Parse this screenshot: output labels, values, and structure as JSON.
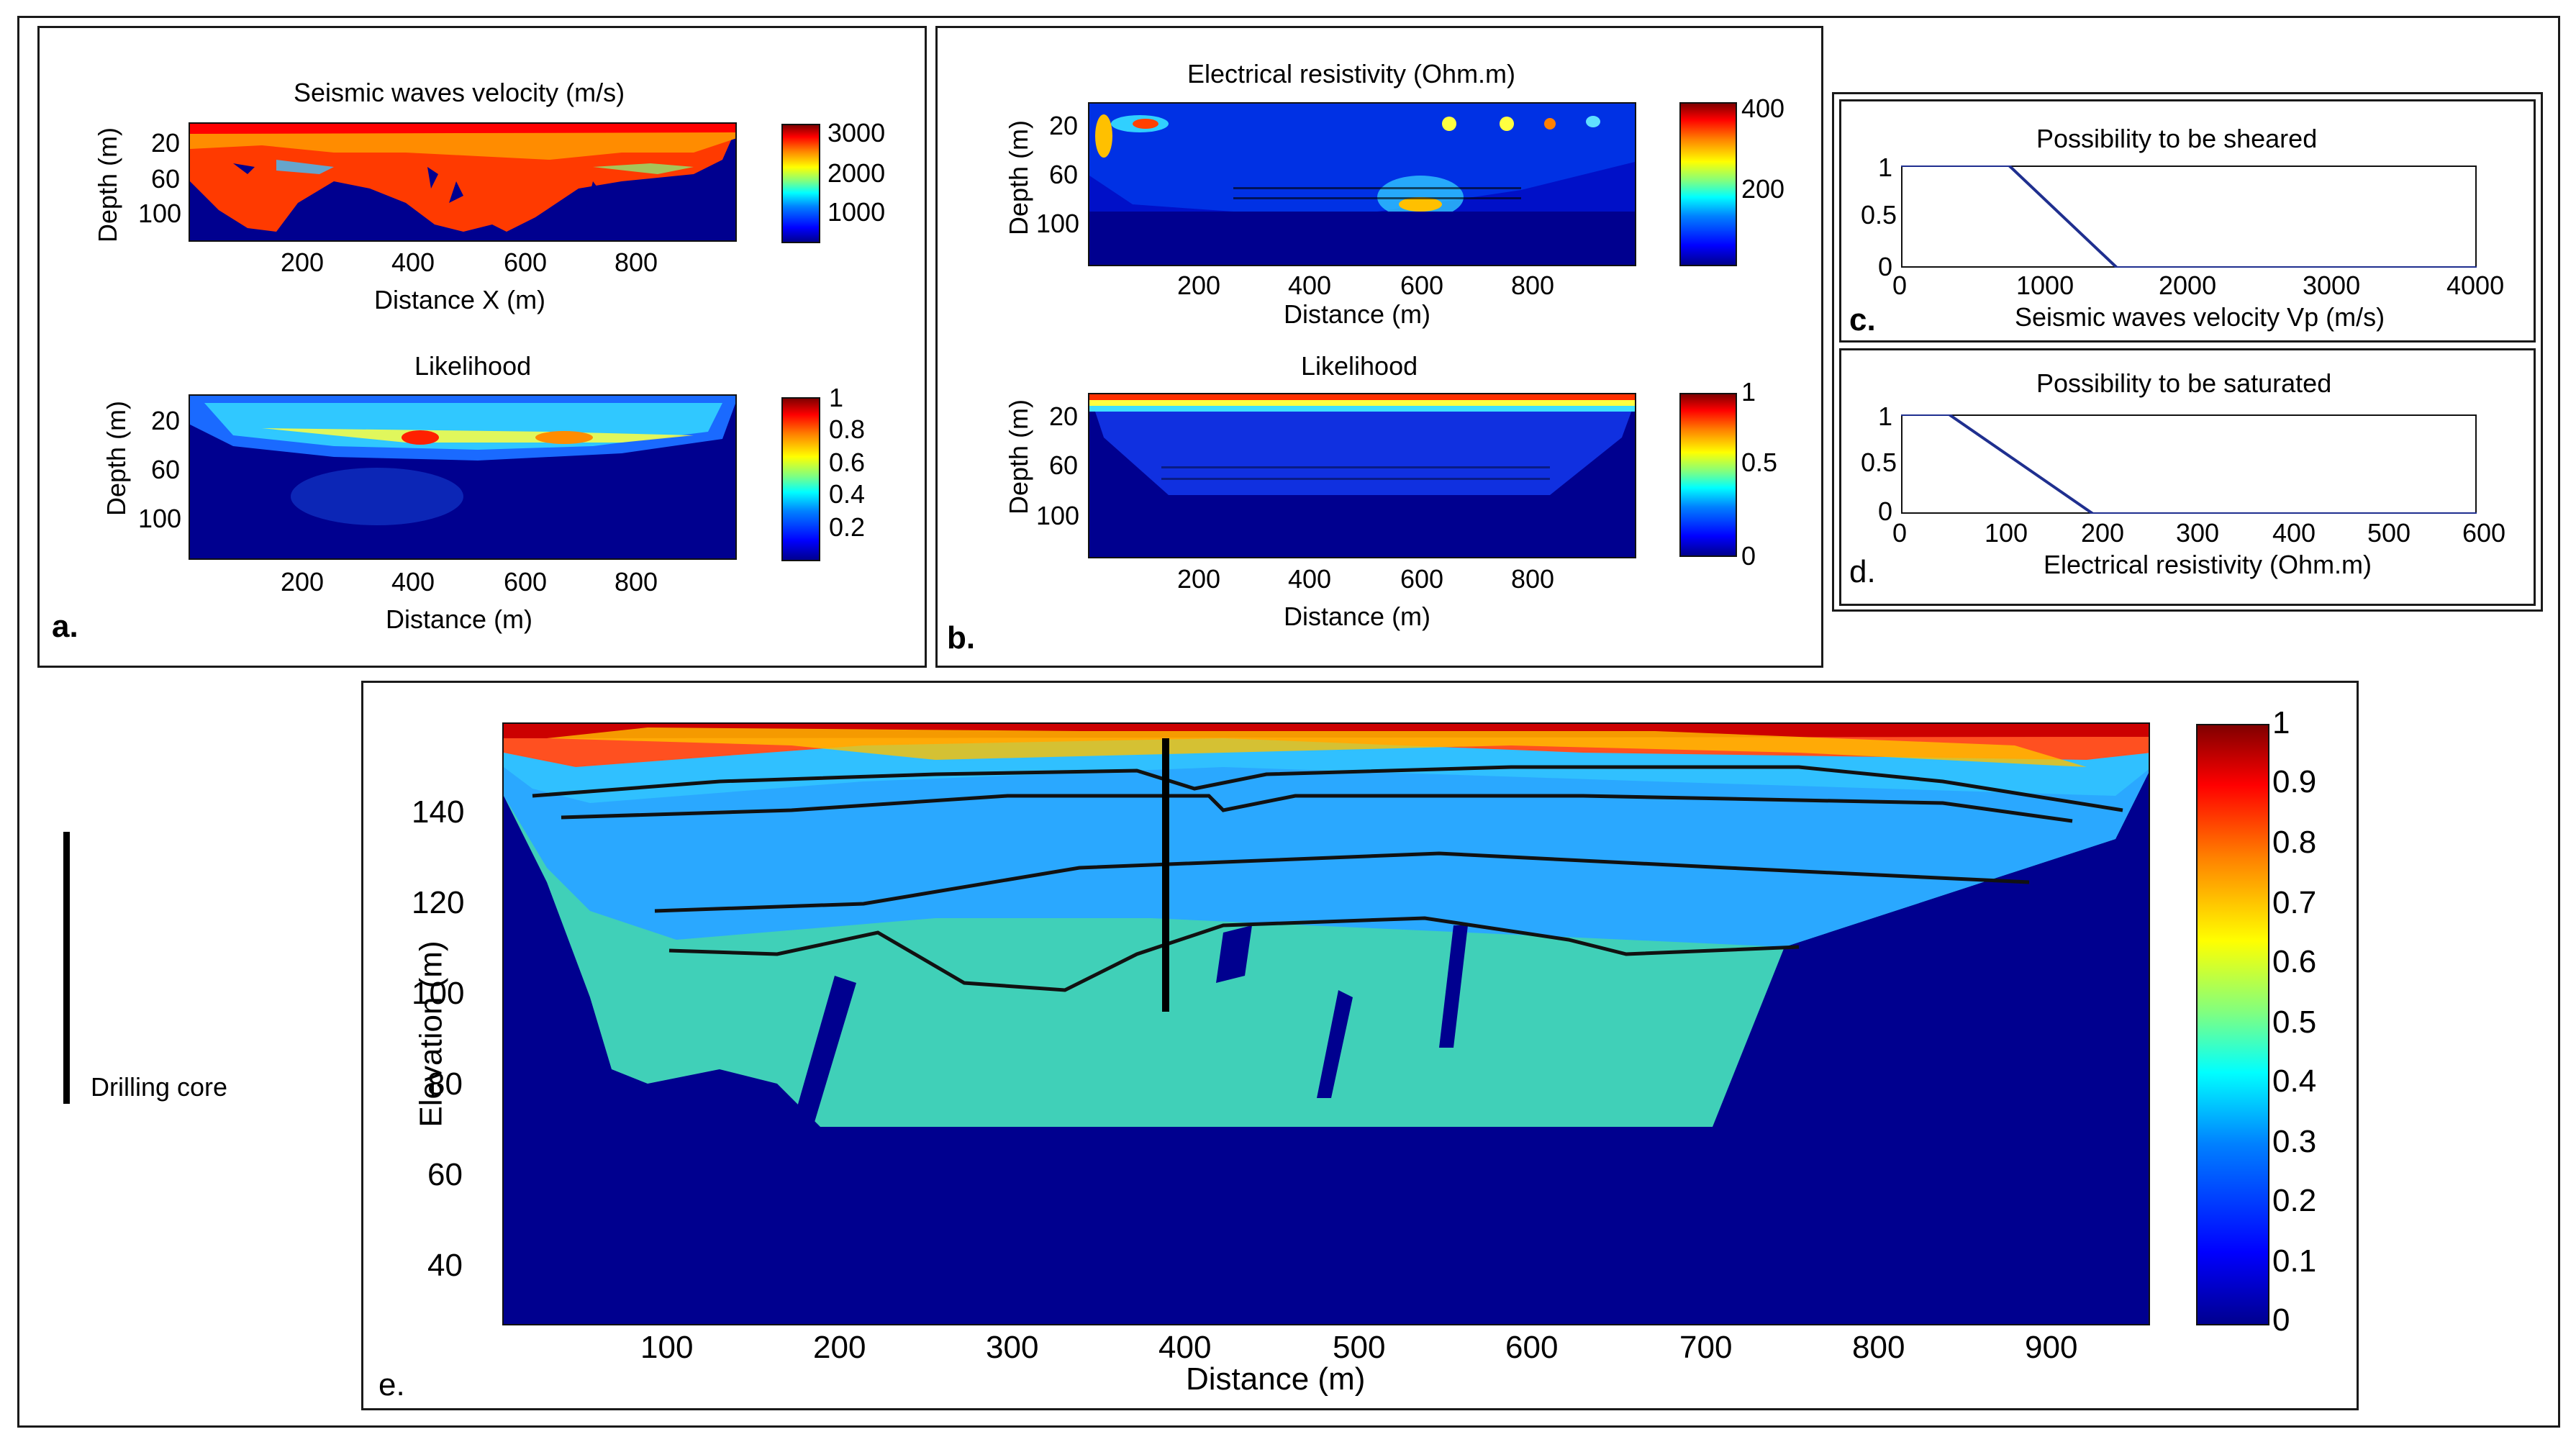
{
  "colors": {
    "deep": "#00008f",
    "curve": "#1f2f8f"
  },
  "panel_a": {
    "tag": "a.",
    "top": {
      "title": "Seismic waves velocity (m/s)",
      "ylabel": "Depth (m)",
      "yticks": [
        "20",
        "60",
        "100"
      ],
      "xticks": [
        "200",
        "400",
        "600",
        "800"
      ],
      "xlabel": "Distance X (m)",
      "cbar_ticks": [
        "3000",
        "2000",
        "1000"
      ]
    },
    "bottom": {
      "title": "Likelihood",
      "ylabel": "Depth (m)",
      "yticks": [
        "20",
        "60",
        "100"
      ],
      "xticks": [
        "200",
        "400",
        "600",
        "800"
      ],
      "xlabel": "Distance (m)",
      "cbar_ticks": [
        "1",
        "0.8",
        "0.6",
        "0.4",
        "0.2"
      ]
    }
  },
  "panel_b": {
    "tag": "b.",
    "top": {
      "title": "Electrical resistivity (Ohm.m)",
      "ylabel": "Depth (m)",
      "yticks": [
        "20",
        "60",
        "100"
      ],
      "xticks": [
        "200",
        "400",
        "600",
        "800"
      ],
      "xlabel": "Distance (m)",
      "cbar_ticks": [
        "400",
        "200"
      ]
    },
    "bottom": {
      "title": "Likelihood",
      "ylabel": "Depth (m)",
      "yticks": [
        "20",
        "60",
        "100"
      ],
      "xticks": [
        "200",
        "400",
        "600",
        "800"
      ],
      "xlabel": "Distance (m)",
      "cbar_ticks": [
        "1",
        "0.5",
        "0"
      ]
    }
  },
  "panel_c": {
    "tag": "c.",
    "title": "Possibility to be sheared",
    "xlabel": "Seismic waves velocity Vp (m/s)",
    "yticks": [
      "1",
      "0.5",
      "0"
    ],
    "xticks": [
      "0",
      "1000",
      "2000",
      "3000",
      "4000"
    ]
  },
  "panel_d": {
    "tag": "d.",
    "title": "Possibility to be saturated",
    "xlabel": "Electrical resistivity (Ohm.m)",
    "yticks": [
      "1",
      "0.5",
      "0"
    ],
    "xticks": [
      "0",
      "100",
      "200",
      "300",
      "400",
      "500",
      "600"
    ]
  },
  "panel_e": {
    "tag": "e.",
    "ylabel": "Elevation (m)",
    "xlabel": "Distance (m)",
    "yticks": [
      "140",
      "120",
      "100",
      "80",
      "60",
      "40"
    ],
    "xticks": [
      "100",
      "200",
      "300",
      "400",
      "500",
      "600",
      "700",
      "800",
      "900"
    ],
    "cbar_ticks": [
      "1",
      "0.9",
      "0.8",
      "0.7",
      "0.6",
      "0.5",
      "0.4",
      "0.3",
      "0.2",
      "0.1",
      "0"
    ]
  },
  "legend": {
    "label": "Drilling core"
  },
  "chart_data": [
    {
      "type": "line",
      "title": "Possibility to be sheared",
      "xlabel": "Seismic waves velocity Vp (m/s)",
      "x": [
        0,
        750,
        1500,
        4000
      ],
      "y": [
        1,
        1,
        0,
        0
      ],
      "xlim": [
        0,
        4000
      ],
      "ylim": [
        0,
        1
      ]
    },
    {
      "type": "line",
      "title": "Possibility to be saturated",
      "xlabel": "Electrical resistivity (Ohm.m)",
      "x": [
        0,
        50,
        200,
        600
      ],
      "y": [
        1,
        1,
        0,
        0
      ],
      "xlim": [
        0,
        600
      ],
      "ylim": [
        0,
        1
      ]
    }
  ]
}
